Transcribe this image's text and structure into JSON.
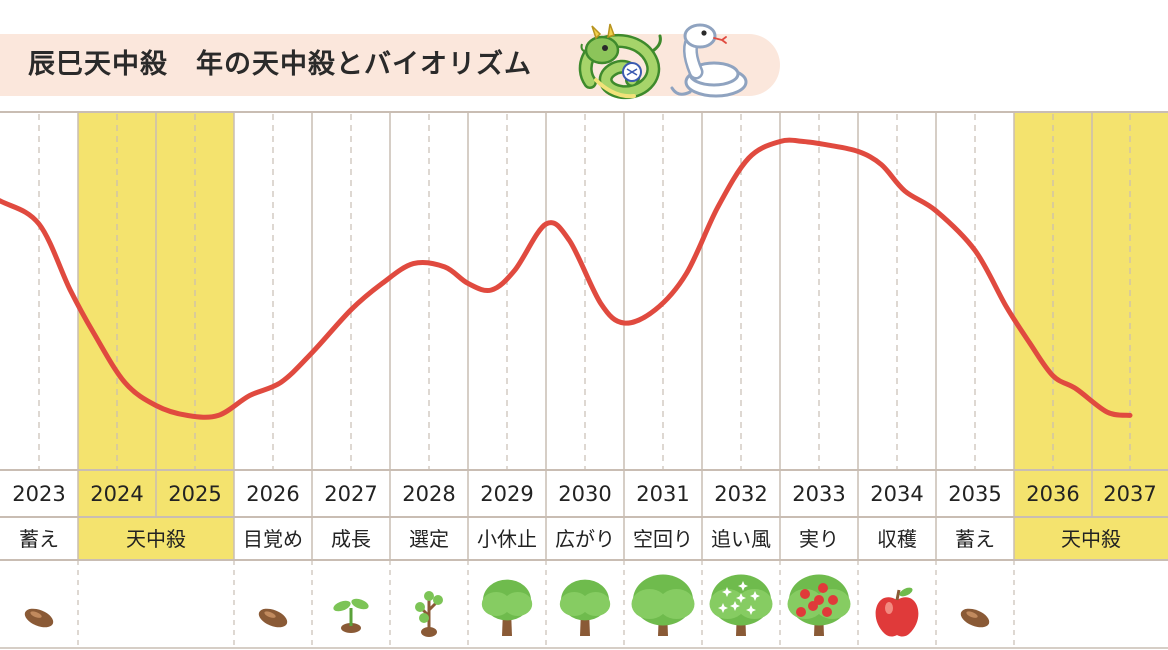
{
  "title": {
    "text": "辰巳天中殺　年の天中殺とバイオリズム",
    "icons": [
      "dragon-icon",
      "snake-icon"
    ]
  },
  "colors": {
    "curve": "#e04a3f",
    "highlight": "#f4e36e",
    "grid": "#c9bdb3",
    "title_bg": "#fbe7dc"
  },
  "chart_data": {
    "type": "line",
    "title": "辰巳天中殺　年の天中殺とバイオリズム",
    "xlabel": "",
    "ylabel": "",
    "grid": true,
    "categories": [
      "2023",
      "2024",
      "2025",
      "2026",
      "2027",
      "2028",
      "2029",
      "2030",
      "2031",
      "2032",
      "2033",
      "2034",
      "2035",
      "2036",
      "2037"
    ],
    "highlighted_years": [
      "2024",
      "2025",
      "2036",
      "2037"
    ],
    "series": [
      {
        "x": [
          2022.5,
          2023.0,
          2023.5,
          2023.9,
          2024.2,
          2024.6,
          2025.0,
          2025.4,
          2025.8,
          2026.2,
          2026.6,
          2027.0,
          2027.5,
          2027.9,
          2028.3,
          2028.7,
          2029.0,
          2029.3,
          2029.6,
          2030.0,
          2030.3,
          2030.7,
          2031.0,
          2031.4,
          2031.8,
          2032.2,
          2032.6,
          2033.0,
          2033.3,
          2033.6,
          2034.0,
          2034.3,
          2034.6,
          2035.0,
          2035.5,
          2035.9,
          2036.2,
          2036.5,
          2036.8,
          2037.2,
          2037.5
        ],
        "y": [
          82,
          77,
          70,
          50,
          37,
          22,
          15,
          12,
          12,
          18,
          22,
          31,
          44,
          52,
          58,
          57,
          52,
          50,
          56,
          70,
          65,
          46,
          40,
          44,
          55,
          75,
          90,
          95,
          95,
          94,
          92,
          88,
          80,
          74,
          62,
          45,
          34,
          24,
          20,
          13,
          12
        ]
      }
    ],
    "ylim": [
      0,
      100
    ],
    "phases": [
      {
        "label": "蓄え",
        "years": [
          "2023"
        ]
      },
      {
        "label": "天中殺",
        "years": [
          "2024",
          "2025"
        ]
      },
      {
        "label": "目覚め",
        "years": [
          "2026"
        ]
      },
      {
        "label": "成長",
        "years": [
          "2027"
        ]
      },
      {
        "label": "選定",
        "years": [
          "2028"
        ]
      },
      {
        "label": "小休止",
        "years": [
          "2029"
        ]
      },
      {
        "label": "広がり",
        "years": [
          "2030"
        ]
      },
      {
        "label": "空回り",
        "years": [
          "2031"
        ]
      },
      {
        "label": "追い風",
        "years": [
          "2032"
        ]
      },
      {
        "label": "実り",
        "years": [
          "2033"
        ]
      },
      {
        "label": "収穫",
        "years": [
          "2034"
        ]
      },
      {
        "label": "蓄え",
        "years": [
          "2035"
        ]
      },
      {
        "label": "天中殺",
        "years": [
          "2036",
          "2037"
        ]
      }
    ],
    "growth_icons": [
      "seed-icon",
      "",
      "seed-icon",
      "sprout-icon",
      "sapling-icon",
      "tree-icon",
      "tree-icon",
      "big-tree-icon",
      "flowering-tree-icon",
      "fruit-tree-icon",
      "apple-icon",
      "seed-icon",
      ""
    ]
  }
}
